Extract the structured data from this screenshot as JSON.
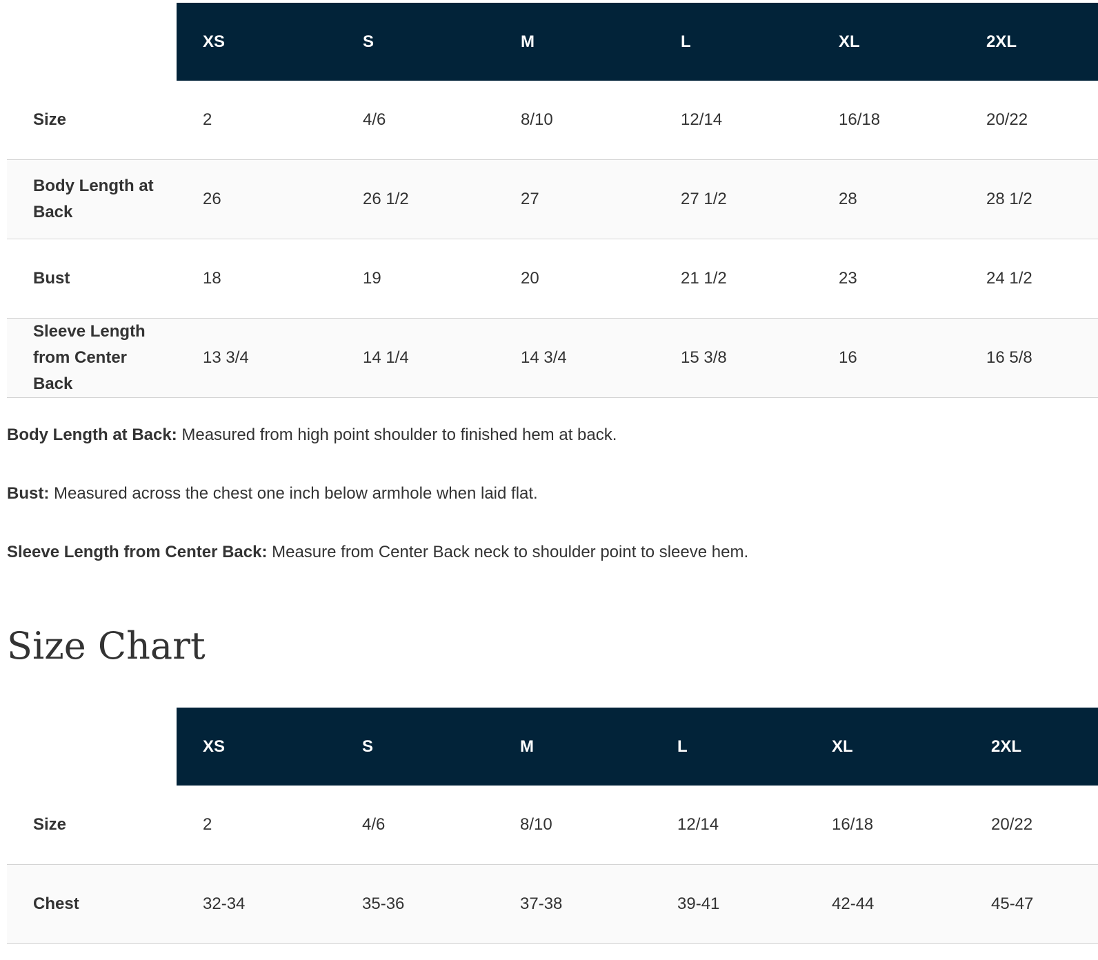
{
  "colors": {
    "header_bg": "#022339",
    "header_text": "#ffffff",
    "body_text": "#333333",
    "row_alt": "#fafafa",
    "border": "#d4d4d4"
  },
  "table1": {
    "headers": [
      "XS",
      "S",
      "M",
      "L",
      "XL",
      "2XL"
    ],
    "rows": [
      {
        "label": "Size",
        "values": [
          "2",
          "4/6",
          "8/10",
          "12/14",
          "16/18",
          "20/22"
        ]
      },
      {
        "label": "Body Length at Back",
        "values": [
          "26",
          "26 1/2",
          "27",
          "27 1/2",
          "28",
          "28 1/2"
        ]
      },
      {
        "label": "Bust",
        "values": [
          "18",
          "19",
          "20",
          "21 1/2",
          "23",
          "24 1/2"
        ]
      },
      {
        "label": "Sleeve Length from Center Back",
        "values": [
          "13 3/4",
          "14 1/4",
          "14 3/4",
          "15 3/8",
          "16",
          "16 5/8"
        ]
      }
    ]
  },
  "notes": [
    {
      "term": "Body Length at Back:",
      "text": " Measured from high point shoulder to finished hem at back."
    },
    {
      "term": "Bust:",
      "text": " Measured across the chest one inch below armhole when laid flat."
    },
    {
      "term": "Sleeve Length from Center Back:",
      "text": " Measure from Center Back neck to shoulder point to sleeve hem."
    }
  ],
  "heading": "Size Chart",
  "table2": {
    "headers": [
      "XS",
      "S",
      "M",
      "L",
      "XL",
      "2XL"
    ],
    "rows": [
      {
        "label": "Size",
        "values": [
          "2",
          "4/6",
          "8/10",
          "12/14",
          "16/18",
          "20/22"
        ]
      },
      {
        "label": "Chest",
        "values": [
          "32-34",
          "35-36",
          "37-38",
          "39-41",
          "42-44",
          "45-47"
        ]
      }
    ]
  }
}
